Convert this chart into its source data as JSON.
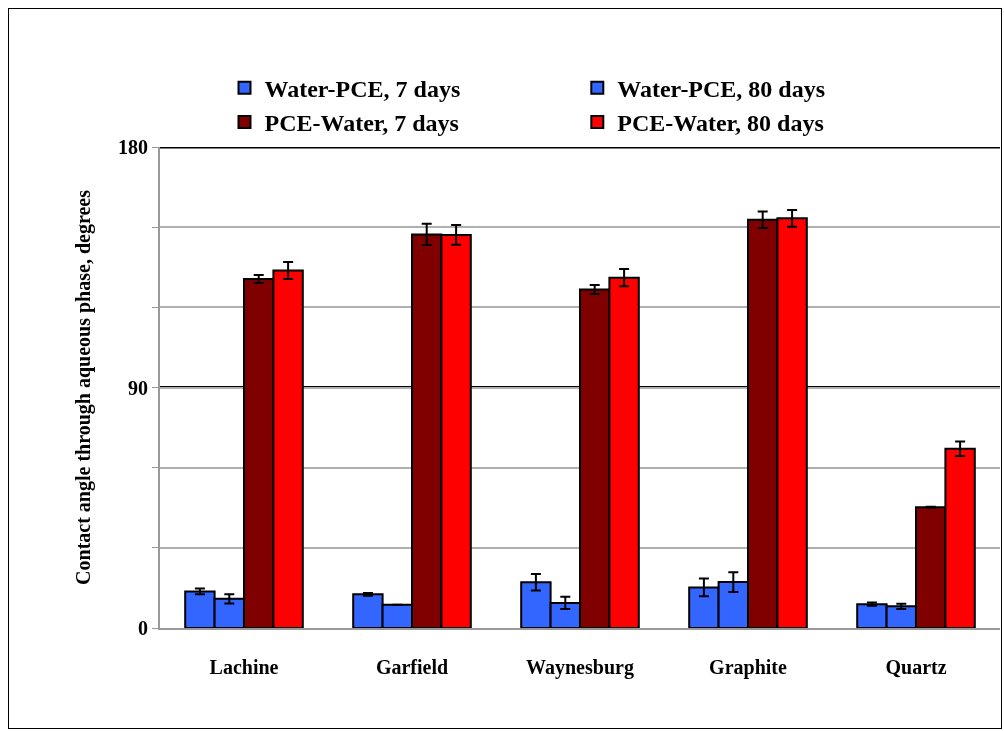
{
  "chart_data": {
    "type": "bar",
    "ylabel": "Contact angle through aqueous phase, degrees",
    "categories": [
      "Lachine",
      "Garfield",
      "Waynesburg",
      "Graphite",
      "Quartz"
    ],
    "series": [
      {
        "name": "Water-PCE, 7 days",
        "color": "#3366ff",
        "values": [
          13.7,
          12.6,
          17.1,
          15.2,
          8.9
        ],
        "errors": [
          1.1,
          0.5,
          3.1,
          3.3,
          0.6
        ]
      },
      {
        "name": "Water-PCE, 80 days",
        "color": "#3366ff",
        "values": [
          10.9,
          8.7,
          9.4,
          17.2,
          8.1
        ],
        "errors": [
          1.7,
          null,
          2.3,
          3.7,
          1.0
        ]
      },
      {
        "name": "PCE-Water, 7 days",
        "color": "#800000",
        "values": [
          130.6,
          147.3,
          126.7,
          152.8,
          45.2
        ],
        "errors": [
          1.5,
          4.0,
          1.7,
          3.1,
          0.2
        ]
      },
      {
        "name": "PCE-Water, 80 days",
        "color": "#ff0000",
        "values": [
          133.8,
          147.1,
          131.1,
          153.3,
          67.1
        ],
        "errors": [
          3.2,
          3.7,
          3.2,
          3.1,
          2.7
        ]
      }
    ],
    "ylim": [
      0,
      180
    ],
    "yticks": [
      0,
      {
        "value": 30,
        "label": null
      },
      {
        "value": 60,
        "label": null
      },
      90,
      {
        "value": 120,
        "label": null
      },
      {
        "value": 150,
        "label": null
      },
      180
    ],
    "ref_lines": [
      {
        "axis": "y",
        "value": 90,
        "color": "#000000"
      },
      {
        "axis": "y",
        "value": 180,
        "color": "#000000"
      }
    ],
    "grid": "y",
    "legend": "top"
  }
}
